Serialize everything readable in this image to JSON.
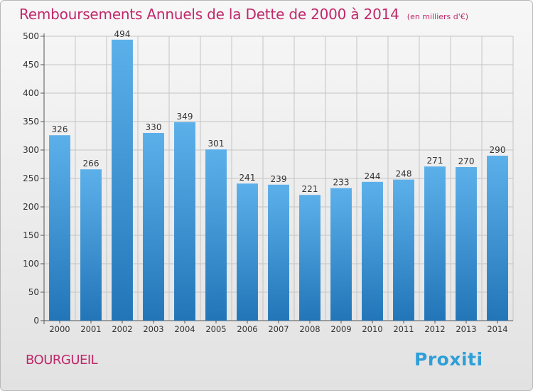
{
  "title": "Remboursements Annuels de la Dette de 2000 à 2014",
  "subtitle": "(en milliers d'€)",
  "location_label": "BOURGUEIL",
  "brand_logo": "Proxiti",
  "colors": {
    "title": "#c0286a",
    "bar_top": "#5cb0ea",
    "bar_bottom": "#2276b8",
    "grid": "#c4c4c4"
  },
  "chart_data": {
    "type": "bar",
    "title": "Remboursements Annuels de la Dette de 2000 à 2014",
    "subtitle": "(en milliers d'€)",
    "categories": [
      "2000",
      "2001",
      "2002",
      "2003",
      "2004",
      "2005",
      "2006",
      "2007",
      "2008",
      "2009",
      "2010",
      "2011",
      "2012",
      "2013",
      "2014"
    ],
    "values": [
      326,
      266,
      494,
      330,
      349,
      301,
      241,
      239,
      221,
      233,
      244,
      248,
      271,
      270,
      290
    ],
    "ylim": [
      0,
      500
    ],
    "yticks": [
      0,
      50,
      100,
      150,
      200,
      250,
      300,
      350,
      400,
      450,
      500
    ],
    "grid": true,
    "data_labels": true
  }
}
